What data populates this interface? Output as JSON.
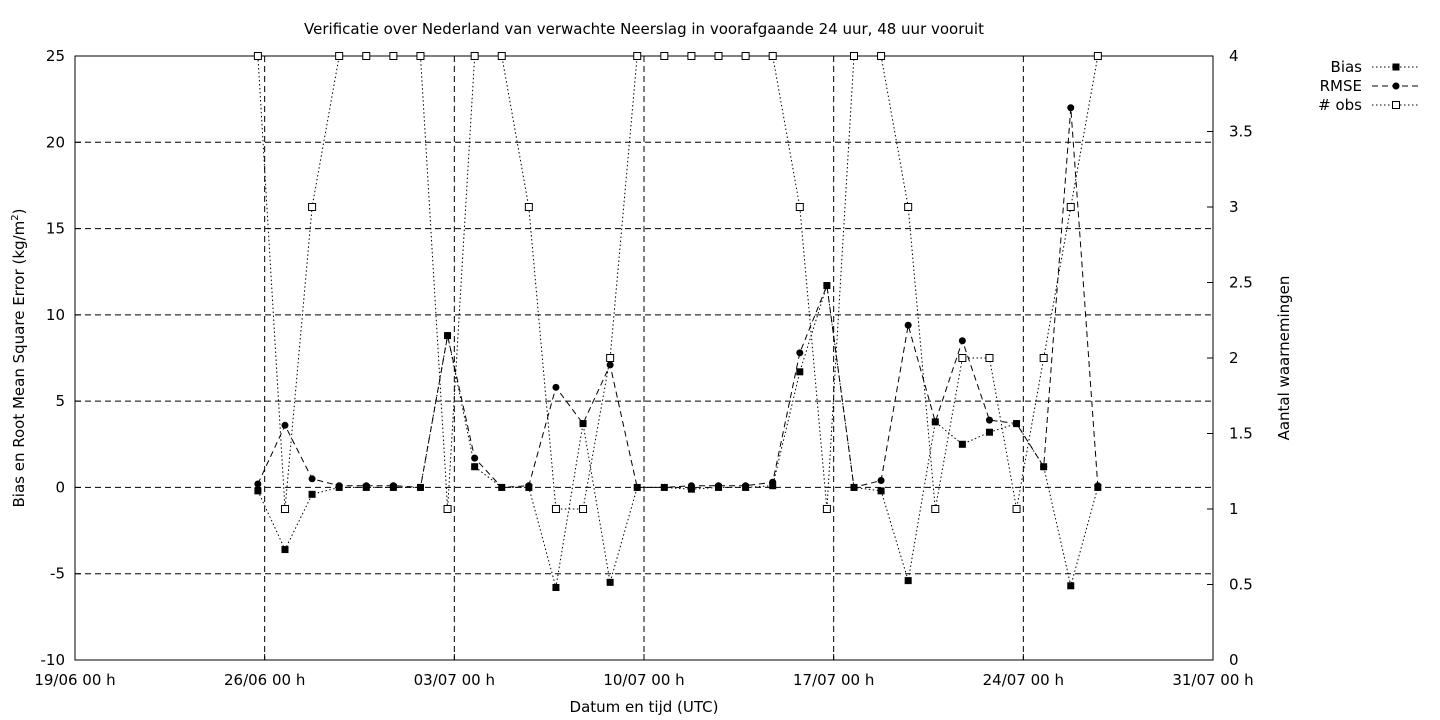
{
  "chart_data": {
    "type": "line",
    "title": "Verificatie over Nederland van verwachte Neerslag in voorafgaande 24 uur, 48 uur vooruit",
    "xlabel": "Datum en tijd (UTC)",
    "ylabel_main": "Bias en Root Mean Square Error (kg/m",
    "ylabel_sup": "2",
    "ylabel_close": ")",
    "y2label": "Aantal waarnemingen",
    "x_ticks": [
      "19/06 00 h",
      "26/06 00 h",
      "03/07 00 h",
      "10/07 00 h",
      "17/07 00 h",
      "24/07 00 h",
      "31/07 00 h"
    ],
    "y_ticks": [
      "-10",
      "-5",
      "0",
      "5",
      "10",
      "15",
      "20",
      "25"
    ],
    "y2_ticks": [
      "0",
      "0.5",
      "1",
      "1.5",
      "2",
      "2.5",
      "3",
      "3.5",
      "4"
    ],
    "xlim_days_from_19_06": [
      0,
      42
    ],
    "ylim": [
      -10,
      25
    ],
    "y2lim": [
      0,
      4
    ],
    "grid": "dashed at labelled ticks (x: weekly; y: every 5)",
    "legend_position": "top-right, outside plot",
    "series": [
      {
        "name": "Bias",
        "axis": "left",
        "line_style": "dotted",
        "marker": "filled-square",
        "x": [
          "25/06 18 h",
          "26/06 18 h",
          "27/06 18 h",
          "28/06 18 h",
          "29/06 18 h",
          "30/06 18 h",
          "01/07 18 h",
          "02/07 18 h",
          "03/07 18 h",
          "04/07 18 h",
          "05/07 18 h",
          "06/07 18 h",
          "07/07 18 h",
          "08/07 18 h",
          "09/07 18 h",
          "10/07 18 h",
          "11/07 18 h",
          "12/07 18 h",
          "13/07 18 h",
          "14/07 18 h",
          "15/07 18 h",
          "16/07 18 h",
          "17/07 18 h",
          "18/07 18 h",
          "19/07 18 h",
          "20/07 18 h",
          "21/07 18 h",
          "22/07 18 h",
          "23/07 18 h",
          "24/07 18 h",
          "25/07 18 h",
          "26/07 18 h"
        ],
        "y": [
          -0.2,
          -3.6,
          -0.4,
          0.0,
          0.0,
          0.0,
          0.0,
          8.8,
          1.2,
          0.0,
          0.0,
          -5.8,
          3.7,
          -5.5,
          0.0,
          0.0,
          -0.1,
          0.0,
          0.0,
          0.1,
          6.7,
          11.7,
          0.0,
          -0.2,
          -5.4,
          3.8,
          2.5,
          3.2,
          3.7,
          1.2,
          -5.7,
          0.0
        ]
      },
      {
        "name": "RMSE",
        "axis": "left",
        "line_style": "dashed",
        "marker": "filled-circle",
        "x": [
          "25/06 18 h",
          "26/06 18 h",
          "27/06 18 h",
          "28/06 18 h",
          "29/06 18 h",
          "30/06 18 h",
          "01/07 18 h",
          "02/07 18 h",
          "03/07 18 h",
          "04/07 18 h",
          "05/07 18 h",
          "06/07 18 h",
          "07/07 18 h",
          "08/07 18 h",
          "09/07 18 h",
          "10/07 18 h",
          "11/07 18 h",
          "12/07 18 h",
          "13/07 18 h",
          "14/07 18 h",
          "15/07 18 h",
          "16/07 18 h",
          "17/07 18 h",
          "18/07 18 h",
          "19/07 18 h",
          "20/07 18 h",
          "21/07 18 h",
          "22/07 18 h",
          "23/07 18 h",
          "24/07 18 h",
          "25/07 18 h",
          "26/07 18 h"
        ],
        "y": [
          0.2,
          3.6,
          0.5,
          0.1,
          0.1,
          0.1,
          0.0,
          8.8,
          1.7,
          0.0,
          0.1,
          5.8,
          3.7,
          7.1,
          0.0,
          0.0,
          0.1,
          0.1,
          0.1,
          0.3,
          7.8,
          11.7,
          0.0,
          0.4,
          9.4,
          3.8,
          8.5,
          3.9,
          3.7,
          1.2,
          22.0,
          0.1
        ]
      },
      {
        "name": "# obs",
        "axis": "right",
        "line_style": "dotted",
        "marker": "open-square",
        "x": [
          "25/06 18 h",
          "26/06 18 h",
          "27/06 18 h",
          "28/06 18 h",
          "29/06 18 h",
          "30/06 18 h",
          "01/07 18 h",
          "02/07 18 h",
          "03/07 18 h",
          "04/07 18 h",
          "05/07 18 h",
          "06/07 18 h",
          "07/07 18 h",
          "08/07 18 h",
          "09/07 18 h",
          "10/07 18 h",
          "11/07 18 h",
          "12/07 18 h",
          "13/07 18 h",
          "14/07 18 h",
          "15/07 18 h",
          "16/07 18 h",
          "17/07 18 h",
          "18/07 18 h",
          "19/07 18 h",
          "20/07 18 h",
          "21/07 18 h",
          "22/07 18 h",
          "23/07 18 h",
          "24/07 18 h",
          "25/07 18 h",
          "26/07 18 h"
        ],
        "y": [
          4,
          1,
          3,
          4,
          4,
          4,
          4,
          1,
          4,
          4,
          3,
          1,
          1,
          2,
          4,
          4,
          4,
          4,
          4,
          4,
          3,
          1,
          4,
          4,
          3,
          1,
          2,
          2,
          1,
          2,
          3,
          4
        ]
      }
    ]
  }
}
